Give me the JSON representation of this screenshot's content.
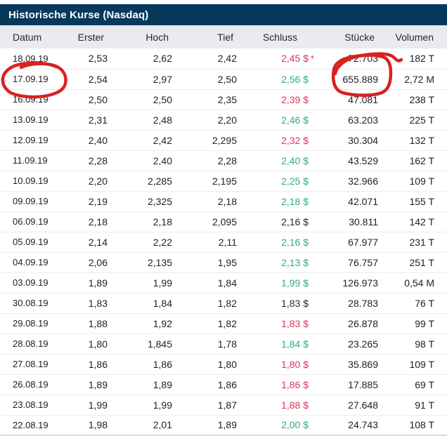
{
  "widget": {
    "title": "Historische Kurse (Nasdaq)"
  },
  "colors": {
    "title_bar_bg": "#06395c",
    "header_row_bg": "#e9ebee",
    "positive_green": "#2fa98e",
    "negative_red": "#e03457",
    "annotation_red": "#d92121"
  },
  "table": {
    "columns": [
      "Datum",
      "Erster",
      "Hoch",
      "Tief",
      "Schluss",
      "Stücke",
      "Volumen"
    ],
    "rows": [
      {
        "datum": "18.09.19",
        "erster": "2,53",
        "hoch": "2,62",
        "tief": "2,42",
        "schluss": "2,45 $",
        "trend": "down",
        "star": "*",
        "stuecke": "72.703",
        "volumen": "182 T"
      },
      {
        "datum": "17.09.19",
        "erster": "2,54",
        "hoch": "2,97",
        "tief": "2,50",
        "schluss": "2,56 $",
        "trend": "up",
        "star": "",
        "stuecke": "655.889",
        "volumen": "2,72 M"
      },
      {
        "datum": "16.09.19",
        "erster": "2,50",
        "hoch": "2,50",
        "tief": "2,35",
        "schluss": "2,39 $",
        "trend": "down",
        "star": "",
        "stuecke": "47.081",
        "volumen": "238 T"
      },
      {
        "datum": "13.09.19",
        "erster": "2,31",
        "hoch": "2,48",
        "tief": "2,20",
        "schluss": "2,46 $",
        "trend": "up",
        "star": "",
        "stuecke": "63.203",
        "volumen": "225 T"
      },
      {
        "datum": "12.09.19",
        "erster": "2,40",
        "hoch": "2,42",
        "tief": "2,295",
        "schluss": "2,32 $",
        "trend": "down",
        "star": "",
        "stuecke": "30.304",
        "volumen": "132 T"
      },
      {
        "datum": "11.09.19",
        "erster": "2,28",
        "hoch": "2,40",
        "tief": "2,28",
        "schluss": "2,40 $",
        "trend": "up",
        "star": "",
        "stuecke": "43.529",
        "volumen": "162 T"
      },
      {
        "datum": "10.09.19",
        "erster": "2,20",
        "hoch": "2,285",
        "tief": "2,195",
        "schluss": "2,25 $",
        "trend": "up",
        "star": "",
        "stuecke": "32.966",
        "volumen": "109 T"
      },
      {
        "datum": "09.09.19",
        "erster": "2,19",
        "hoch": "2,325",
        "tief": "2,18",
        "schluss": "2,18 $",
        "trend": "up",
        "star": "",
        "stuecke": "42.071",
        "volumen": "155 T"
      },
      {
        "datum": "06.09.19",
        "erster": "2,18",
        "hoch": "2,18",
        "tief": "2,095",
        "schluss": "2,16 $",
        "trend": "flat",
        "star": "",
        "stuecke": "30.811",
        "volumen": "142 T"
      },
      {
        "datum": "05.09.19",
        "erster": "2,14",
        "hoch": "2,22",
        "tief": "2,11",
        "schluss": "2,16 $",
        "trend": "up",
        "star": "",
        "stuecke": "67.977",
        "volumen": "231 T"
      },
      {
        "datum": "04.09.19",
        "erster": "2,06",
        "hoch": "2,135",
        "tief": "1,95",
        "schluss": "2,13 $",
        "trend": "up",
        "star": "",
        "stuecke": "76.757",
        "volumen": "251 T"
      },
      {
        "datum": "03.09.19",
        "erster": "1,89",
        "hoch": "1,99",
        "tief": "1,84",
        "schluss": "1,99 $",
        "trend": "up",
        "star": "",
        "stuecke": "126.973",
        "volumen": "0,54 M"
      },
      {
        "datum": "30.08.19",
        "erster": "1,83",
        "hoch": "1,84",
        "tief": "1,82",
        "schluss": "1,83 $",
        "trend": "flat",
        "star": "",
        "stuecke": "28.783",
        "volumen": "76 T"
      },
      {
        "datum": "29.08.19",
        "erster": "1,88",
        "hoch": "1,92",
        "tief": "1,82",
        "schluss": "1,83 $",
        "trend": "down",
        "star": "",
        "stuecke": "26.878",
        "volumen": "99 T"
      },
      {
        "datum": "28.08.19",
        "erster": "1,80",
        "hoch": "1,845",
        "tief": "1,78",
        "schluss": "1,84 $",
        "trend": "up",
        "star": "",
        "stuecke": "23.265",
        "volumen": "98 T"
      },
      {
        "datum": "27.08.19",
        "erster": "1,86",
        "hoch": "1,86",
        "tief": "1,80",
        "schluss": "1,80 $",
        "trend": "down",
        "star": "",
        "stuecke": "35.869",
        "volumen": "109 T"
      },
      {
        "datum": "26.08.19",
        "erster": "1,89",
        "hoch": "1,89",
        "tief": "1,86",
        "schluss": "1,86 $",
        "trend": "down",
        "star": "",
        "stuecke": "17.885",
        "volumen": "69 T"
      },
      {
        "datum": "23.08.19",
        "erster": "1,99",
        "hoch": "1,99",
        "tief": "1,87",
        "schluss": "1,88 $",
        "trend": "down",
        "star": "",
        "stuecke": "27.648",
        "volumen": "91 T"
      },
      {
        "datum": "22.08.19",
        "erster": "1,98",
        "hoch": "2,01",
        "tief": "1,89",
        "schluss": "2,00 $",
        "trend": "up",
        "star": "",
        "stuecke": "24.743",
        "volumen": "108 T"
      }
    ]
  },
  "annotations": {
    "circle_1_target": "17.09.19",
    "circle_2_target": "655.889"
  }
}
